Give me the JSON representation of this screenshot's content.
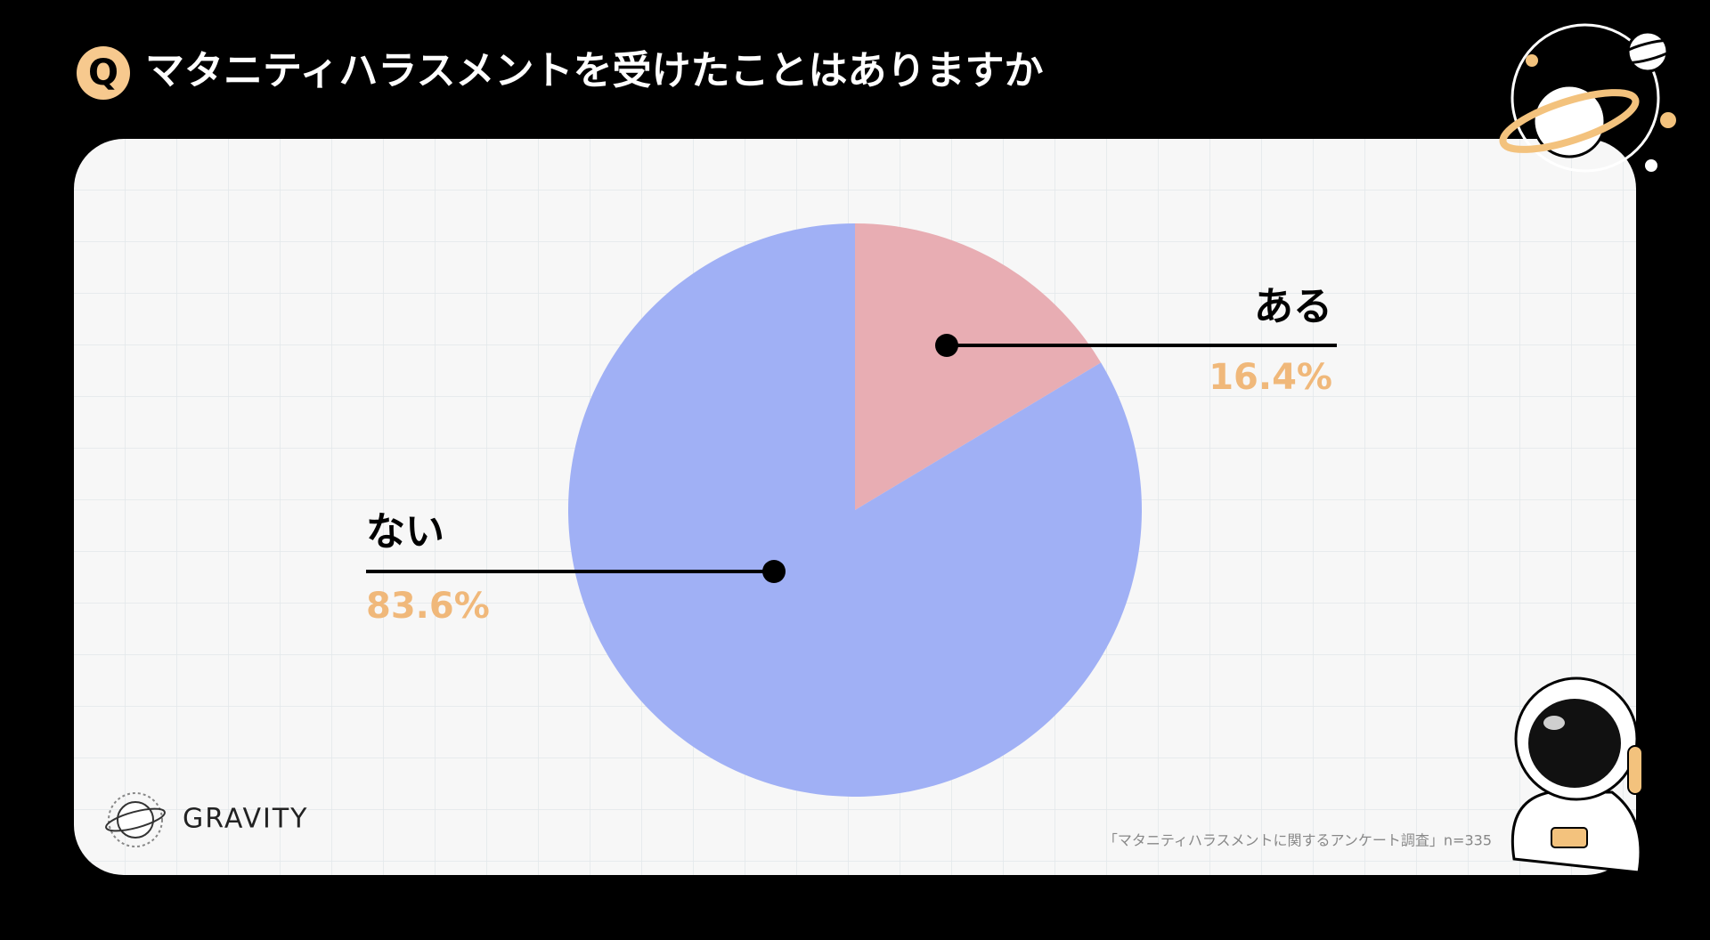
{
  "chart_data": {
    "type": "pie",
    "title": "マタニティハラスメントを受けたことはありますか",
    "title_marker": "Q",
    "categories": [
      "ある",
      "ない"
    ],
    "values": [
      16.4,
      83.6
    ],
    "value_labels": [
      "16.4%",
      "83.6%"
    ],
    "colors": [
      "#e8adb3",
      "#a0b0f5"
    ],
    "source": "「マタニティハラスメントに関するアンケート調査」n=335",
    "brand": "GRAVITY"
  }
}
